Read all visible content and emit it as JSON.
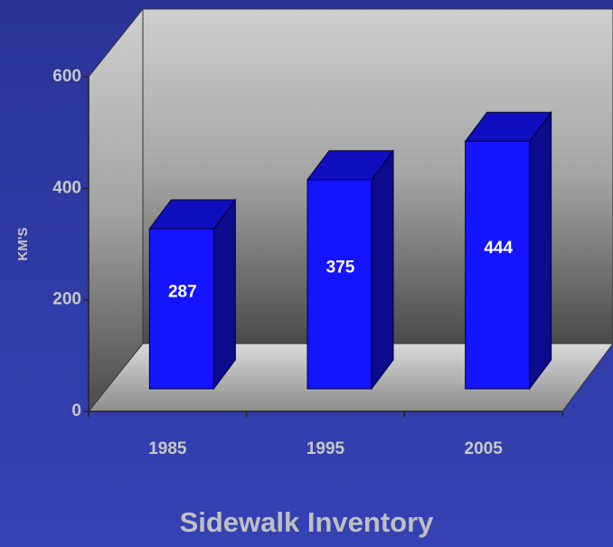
{
  "chart_data": {
    "type": "bar3d",
    "title": "Sidewalk Inventory",
    "y_label": "KM'S",
    "categories": [
      "1985",
      "1995",
      "2005"
    ],
    "values": [
      287,
      375,
      444
    ],
    "color": "#1414ff",
    "ylim": [
      0,
      600
    ],
    "yticks": [
      0,
      200,
      400,
      600
    ],
    "grid": false
  }
}
